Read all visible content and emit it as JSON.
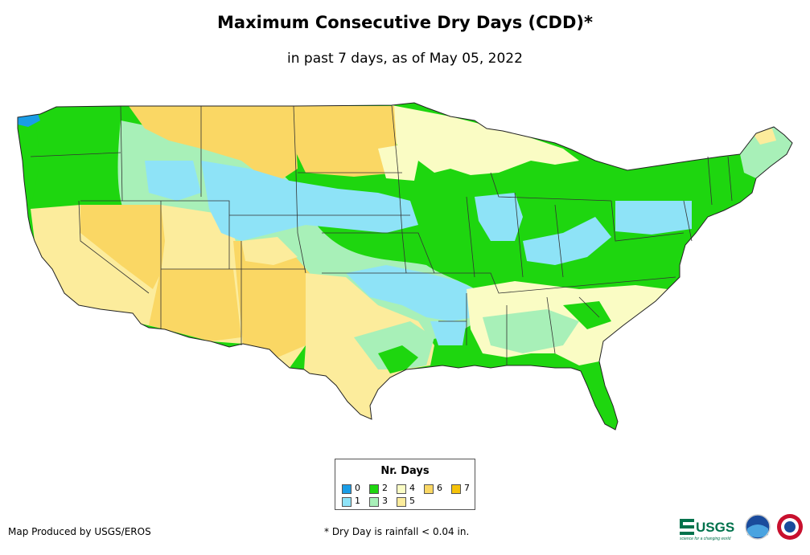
{
  "title": "Maximum Consecutive Dry Days (CDD)*",
  "subtitle": "in past 7 days, as of May 05, 2022",
  "legend": {
    "title": "Nr. Days",
    "items": [
      {
        "label": "0",
        "color": "#1a9de6"
      },
      {
        "label": "1",
        "color": "#8ee3f7"
      },
      {
        "label": "2",
        "color": "#1ed60f"
      },
      {
        "label": "3",
        "color": "#a8f0b8"
      },
      {
        "label": "4",
        "color": "#fafcc4"
      },
      {
        "label": "5",
        "color": "#fcec9c"
      },
      {
        "label": "6",
        "color": "#fad764"
      },
      {
        "label": "7",
        "color": "#f5c20a"
      }
    ]
  },
  "credit": "Map Produced by USGS/EROS",
  "footnote": "* Dry Day is rainfall < 0.04 in.",
  "logos": {
    "usgs_text": "USGS",
    "usgs_tagline": "science for a changing world"
  }
}
